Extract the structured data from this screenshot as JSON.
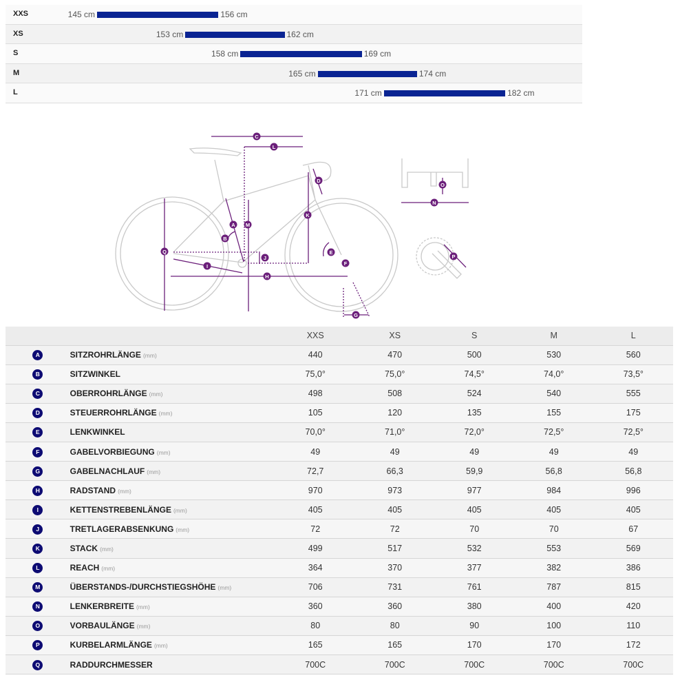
{
  "size_chart": {
    "rows": [
      {
        "size": "XXS",
        "min": 145,
        "max": 156,
        "min_label": "145 cm",
        "max_label": "156 cm"
      },
      {
        "size": "XS",
        "min": 153,
        "max": 162,
        "min_label": "153 cm",
        "max_label": "162 cm"
      },
      {
        "size": "S",
        "min": 158,
        "max": 169,
        "min_label": "158 cm",
        "max_label": "169 cm"
      },
      {
        "size": "M",
        "min": 165,
        "max": 174,
        "min_label": "165 cm",
        "max_label": "174 cm"
      },
      {
        "size": "L",
        "min": 171,
        "max": 182,
        "min_label": "171 cm",
        "max_label": "182 cm"
      }
    ],
    "bar_color": "#0a2493"
  },
  "diagram": {
    "labels": [
      "A",
      "B",
      "C",
      "D",
      "E",
      "F",
      "G",
      "H",
      "I",
      "J",
      "K",
      "L",
      "M",
      "N",
      "O",
      "P",
      "Q"
    ],
    "accent": "#6b1f7a"
  },
  "geometry": {
    "columns": [
      "XXS",
      "XS",
      "S",
      "M",
      "L"
    ],
    "rows": [
      {
        "letter": "A",
        "name": "SITZROHRLÄNGE",
        "unit": "(mm)",
        "values": [
          "440",
          "470",
          "500",
          "530",
          "560"
        ]
      },
      {
        "letter": "B",
        "name": "SITZWINKEL",
        "unit": "",
        "values": [
          "75,0°",
          "75,0°",
          "74,5°",
          "74,0°",
          "73,5°"
        ]
      },
      {
        "letter": "C",
        "name": "OBERROHRLÄNGE",
        "unit": "(mm)",
        "values": [
          "498",
          "508",
          "524",
          "540",
          "555"
        ]
      },
      {
        "letter": "D",
        "name": "STEUERROHRLÄNGE",
        "unit": "(mm)",
        "values": [
          "105",
          "120",
          "135",
          "155",
          "175"
        ]
      },
      {
        "letter": "E",
        "name": "LENKWINKEL",
        "unit": "",
        "values": [
          "70,0°",
          "71,0°",
          "72,0°",
          "72,5°",
          "72,5°"
        ]
      },
      {
        "letter": "F",
        "name": "GABELVORBIEGUNG",
        "unit": "(mm)",
        "values": [
          "49",
          "49",
          "49",
          "49",
          "49"
        ]
      },
      {
        "letter": "G",
        "name": "GABELNACHLAUF",
        "unit": "(mm)",
        "values": [
          "72,7",
          "66,3",
          "59,9",
          "56,8",
          "56,8"
        ]
      },
      {
        "letter": "H",
        "name": "RADSTAND",
        "unit": "(mm)",
        "values": [
          "970",
          "973",
          "977",
          "984",
          "996"
        ]
      },
      {
        "letter": "I",
        "name": "KETTENSTREBENLÄNGE",
        "unit": "(mm)",
        "values": [
          "405",
          "405",
          "405",
          "405",
          "405"
        ]
      },
      {
        "letter": "J",
        "name": "TRETLAGERABSENKUNG",
        "unit": "(mm)",
        "values": [
          "72",
          "72",
          "70",
          "70",
          "67"
        ]
      },
      {
        "letter": "K",
        "name": "STACK",
        "unit": "(mm)",
        "values": [
          "499",
          "517",
          "532",
          "553",
          "569"
        ]
      },
      {
        "letter": "L",
        "name": "REACH",
        "unit": "(mm)",
        "values": [
          "364",
          "370",
          "377",
          "382",
          "386"
        ]
      },
      {
        "letter": "M",
        "name": "ÜBERSTANDS-/DURCHSTIEGSHÖHE",
        "unit": "(mm)",
        "values": [
          "706",
          "731",
          "761",
          "787",
          "815"
        ]
      },
      {
        "letter": "N",
        "name": "LENKERBREITE",
        "unit": "(mm)",
        "values": [
          "360",
          "360",
          "380",
          "400",
          "420"
        ]
      },
      {
        "letter": "O",
        "name": "VORBAULÄNGE",
        "unit": "(mm)",
        "values": [
          "80",
          "80",
          "90",
          "100",
          "110"
        ]
      },
      {
        "letter": "P",
        "name": "KURBELARMLÄNGE",
        "unit": "(mm)",
        "values": [
          "165",
          "165",
          "170",
          "170",
          "172"
        ]
      },
      {
        "letter": "Q",
        "name": "RADDURCHMESSER",
        "unit": "",
        "values": [
          "700C",
          "700C",
          "700C",
          "700C",
          "700C"
        ]
      }
    ]
  }
}
